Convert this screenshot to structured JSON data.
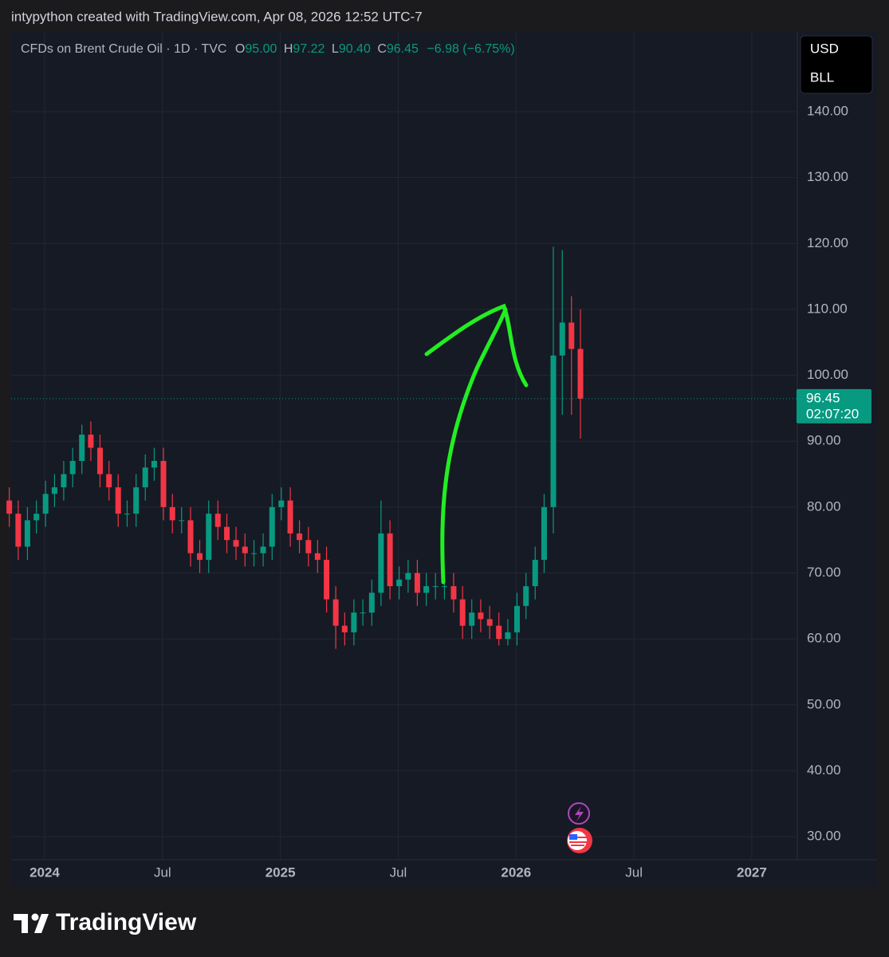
{
  "header": "intypython created with TradingView.com, Apr 08, 2026 12:52 UTC-7",
  "legend": {
    "symbol": "CFDs on Brent Crude Oil · 1D · TVC",
    "open_label": "O",
    "open": "95.00",
    "high_label": "H",
    "high": "97.22",
    "low_label": "L",
    "low": "90.40",
    "close_label": "C",
    "close": "96.45",
    "change": "−6.98 (−6.75%)"
  },
  "currency": "USD",
  "unit": "BLL",
  "countdown": "02:07:20",
  "footer": {
    "brand": "TradingView"
  },
  "chart_data": {
    "type": "candlestick",
    "up_color": "#089981",
    "down_color": "#f23645",
    "grid": true,
    "last_price": 96.45,
    "x": [
      2023.85,
      2023.888,
      2023.927,
      2023.965,
      2024.004,
      2024.042,
      2024.081,
      2024.119,
      2024.158,
      2024.196,
      2024.235,
      2024.273,
      2024.312,
      2024.35,
      2024.388,
      2024.427,
      2024.465,
      2024.504,
      2024.542,
      2024.581,
      2024.619,
      2024.658,
      2024.696,
      2024.735,
      2024.773,
      2024.812,
      2024.85,
      2024.888,
      2024.927,
      2024.965,
      2025.004,
      2025.042,
      2025.081,
      2025.119,
      2025.158,
      2025.196,
      2025.235,
      2025.273,
      2025.312,
      2025.35,
      2025.388,
      2025.427,
      2025.465,
      2025.504,
      2025.542,
      2025.581,
      2025.619,
      2025.658,
      2025.696,
      2025.735,
      2025.773,
      2025.812,
      2025.85,
      2025.888,
      2025.927,
      2025.965,
      2026.004,
      2026.042,
      2026.081,
      2026.119,
      2026.158,
      2026.196,
      2026.235,
      2026.273
    ],
    "open": [
      81,
      79,
      74,
      78,
      79,
      82,
      83,
      85,
      87,
      91,
      89,
      85,
      83,
      79,
      79,
      83,
      86,
      87,
      80,
      78,
      78,
      73,
      72,
      79,
      77,
      75,
      74,
      73,
      73,
      74,
      80,
      81,
      76,
      75,
      73,
      72,
      66,
      62,
      61,
      64,
      64,
      67,
      76,
      68,
      69,
      70,
      67,
      68,
      68,
      68,
      66,
      62,
      64,
      63,
      62,
      60,
      61,
      65,
      68,
      72,
      80,
      103,
      108,
      104
    ],
    "high": [
      83,
      81,
      80,
      81,
      84,
      85,
      87,
      89,
      92.5,
      93,
      91,
      87,
      85,
      81,
      85,
      88,
      89,
      89,
      82,
      80,
      80,
      75,
      81,
      81,
      79,
      77,
      76,
      75,
      76,
      82,
      83,
      83,
      78,
      77,
      75,
      74,
      68,
      64,
      66,
      66,
      69,
      81,
      78,
      71,
      72,
      72,
      70,
      70,
      70,
      70,
      68,
      66,
      66,
      65,
      64,
      63,
      67,
      70,
      74,
      82,
      119.5,
      119,
      112,
      110
    ],
    "low": [
      77,
      72,
      72,
      76,
      77,
      80,
      81,
      83,
      85,
      87,
      83,
      81,
      77,
      77,
      77,
      81,
      84,
      78,
      76,
      76,
      71,
      70,
      70,
      75,
      73,
      72,
      71,
      71,
      71,
      72,
      78,
      74,
      73,
      71,
      70,
      64,
      58.5,
      59,
      59,
      62,
      62,
      65,
      66,
      66,
      67,
      65,
      65,
      66,
      66,
      64,
      60,
      60,
      61,
      60,
      59,
      59,
      59,
      63,
      66,
      70,
      76,
      94,
      94,
      90.4
    ],
    "close": [
      79,
      74,
      78,
      79,
      82,
      83,
      85,
      87,
      91,
      89,
      85,
      83,
      79,
      79,
      83,
      86,
      87,
      80,
      78,
      78,
      73,
      72,
      79,
      77,
      75,
      74,
      73,
      73,
      74,
      80,
      81,
      76,
      75,
      73,
      72,
      66,
      62,
      61,
      64,
      64,
      67,
      76,
      68,
      69,
      70,
      67,
      68,
      68,
      68,
      66,
      62,
      64,
      63,
      62,
      60,
      61,
      65,
      68,
      72,
      80,
      103,
      108,
      104,
      96.45
    ],
    "xlim": [
      2023.858,
      2027.193
    ],
    "xticks": [
      {
        "value": 2024,
        "label": "2024"
      },
      {
        "value": 2024.5,
        "label": "Jul"
      },
      {
        "value": 2025,
        "label": "2025"
      },
      {
        "value": 2025.5,
        "label": "Jul"
      },
      {
        "value": 2026,
        "label": "2026"
      },
      {
        "value": 2026.5,
        "label": "Jul"
      },
      {
        "value": 2027,
        "label": "2027"
      }
    ],
    "ylim": [
      26.5,
      152.1
    ],
    "yticks": [
      {
        "value": 30,
        "label": "30.00"
      },
      {
        "value": 40,
        "label": "40.00"
      },
      {
        "value": 50,
        "label": "50.00"
      },
      {
        "value": 60,
        "label": "60.00"
      },
      {
        "value": 70,
        "label": "70.00"
      },
      {
        "value": 80,
        "label": "80.00"
      },
      {
        "value": 90,
        "label": "90.00"
      },
      {
        "value": 100,
        "label": "100.00"
      },
      {
        "value": 110,
        "label": "110.00"
      },
      {
        "value": 120,
        "label": "120.00"
      },
      {
        "value": 130,
        "label": "130.00"
      },
      {
        "value": 140,
        "label": "140.00"
      }
    ]
  }
}
